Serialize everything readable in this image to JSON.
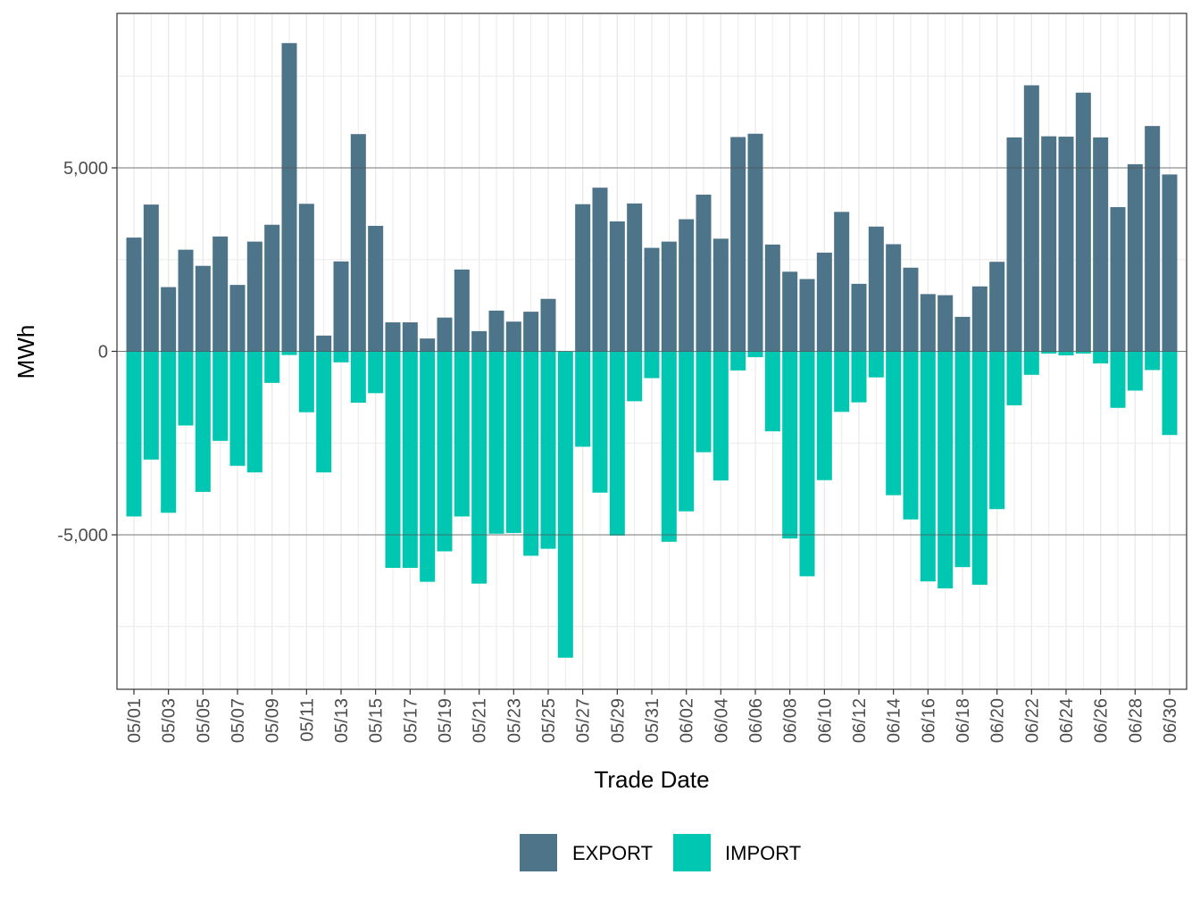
{
  "chart_data": {
    "type": "bar",
    "stacking": "diverging",
    "xlabel": "Trade Date",
    "ylabel": "MWh",
    "ylim": [
      -9000,
      9000
    ],
    "y_ticks": [
      {
        "value": -5000,
        "label": "-5,000"
      },
      {
        "value": 0,
        "label": "0"
      },
      {
        "value": 5000,
        "label": "5,000"
      }
    ],
    "grid": true,
    "legend_position": "bottom",
    "categories": [
      "05/01",
      "05/02",
      "05/03",
      "05/04",
      "05/05",
      "05/06",
      "05/07",
      "05/08",
      "05/09",
      "05/10",
      "05/11",
      "05/12",
      "05/13",
      "05/14",
      "05/15",
      "05/16",
      "05/17",
      "05/18",
      "05/19",
      "05/20",
      "05/21",
      "05/22",
      "05/23",
      "05/24",
      "05/25",
      "05/26",
      "05/27",
      "05/28",
      "05/29",
      "05/30",
      "05/31",
      "06/01",
      "06/02",
      "06/03",
      "06/04",
      "06/05",
      "06/06",
      "06/07",
      "06/08",
      "06/09",
      "06/10",
      "06/11",
      "06/12",
      "06/13",
      "06/14",
      "06/15",
      "06/16",
      "06/17",
      "06/18",
      "06/19",
      "06/20",
      "06/21",
      "06/22",
      "06/23",
      "06/24",
      "06/25",
      "06/26",
      "06/27",
      "06/28",
      "06/29",
      "06/30"
    ],
    "x_tick_labels": [
      "05/01",
      "05/03",
      "05/05",
      "05/07",
      "05/09",
      "05/11",
      "05/13",
      "05/15",
      "05/17",
      "05/19",
      "05/21",
      "05/23",
      "05/25",
      "05/27",
      "05/29",
      "05/31",
      "06/02",
      "06/04",
      "06/06",
      "06/08",
      "06/10",
      "06/12",
      "06/14",
      "06/16",
      "06/18",
      "06/20",
      "06/22",
      "06/24",
      "06/26",
      "06/28",
      "06/30"
    ],
    "series": [
      {
        "name": "EXPORT",
        "color": "#4e7489",
        "values": [
          3100,
          4000,
          1750,
          2770,
          2330,
          3130,
          1810,
          2990,
          3450,
          8400,
          4020,
          430,
          2450,
          5920,
          3420,
          790,
          790,
          350,
          920,
          2230,
          550,
          1110,
          810,
          1080,
          1430,
          0,
          4010,
          4460,
          3540,
          4030,
          2820,
          2990,
          3600,
          4270,
          3070,
          5840,
          5930,
          2910,
          2170,
          1970,
          2690,
          3800,
          1840,
          3400,
          2920,
          2280,
          1560,
          1530,
          940,
          1770,
          2440,
          5830,
          7250,
          5860,
          5850,
          7050,
          5830,
          3930,
          5100,
          6140,
          4820
        ]
      },
      {
        "name": "IMPORT",
        "color": "#00c7b1",
        "values": [
          -4500,
          -2950,
          -4400,
          -2020,
          -3830,
          -2440,
          -3120,
          -3300,
          -860,
          -100,
          -1660,
          -3300,
          -300,
          -1400,
          -1140,
          -5900,
          -5900,
          -6280,
          -5450,
          -4500,
          -6330,
          -4970,
          -4950,
          -5570,
          -5380,
          -8350,
          -2600,
          -3850,
          -5020,
          -1360,
          -730,
          -5190,
          -4360,
          -2750,
          -3520,
          -520,
          -160,
          -2180,
          -5100,
          -6130,
          -3510,
          -1650,
          -1390,
          -710,
          -3920,
          -4580,
          -6270,
          -6460,
          -5880,
          -6360,
          -4300,
          -1470,
          -640,
          -60,
          -110,
          -60,
          -330,
          -1540,
          -1070,
          -510,
          -2280
        ]
      }
    ]
  }
}
